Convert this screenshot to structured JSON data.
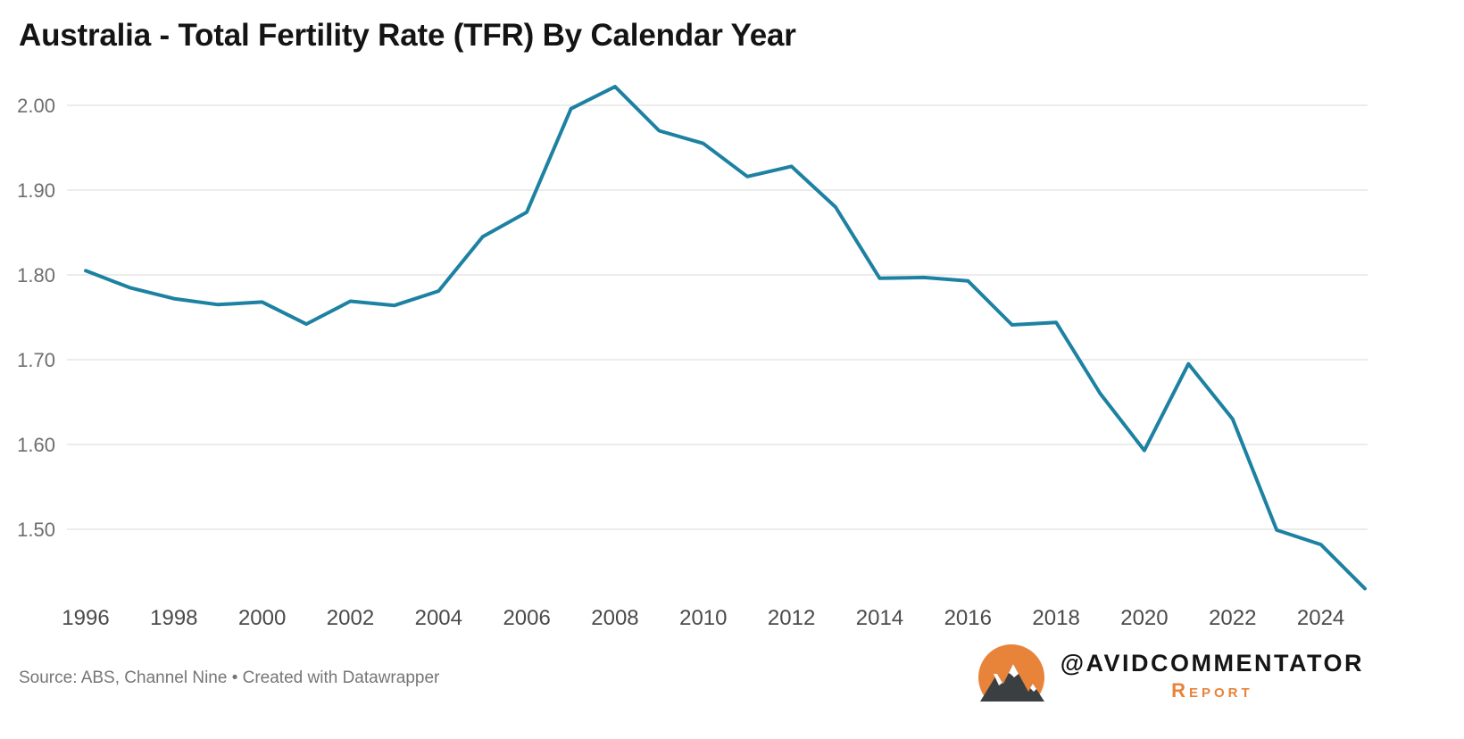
{
  "title": "Australia - Total Fertility Rate (TFR) By Calendar Year",
  "footer": {
    "source": "Source: ABS, Channel Nine • Created with Datawrapper",
    "brand_handle": "@AVIDCOMMENTATOR",
    "brand_sub": "Report"
  },
  "icons": {
    "brand_logo": "mountain-badge-icon"
  },
  "colors": {
    "line": "#1d81a2",
    "grid": "#e6e6e6",
    "y_axis_text": "#6e6e6e",
    "x_axis_text": "#4a4a4a",
    "muted_text": "#767676",
    "brand_orange": "#e8833a",
    "logo_mountain_dark": "#3a3f42",
    "logo_mountain_snow": "#ffffff"
  },
  "chart_data": {
    "type": "line",
    "title": "Australia - Total Fertility Rate (TFR) By Calendar Year",
    "xlabel": "",
    "ylabel": "",
    "grid": "horizontal",
    "legend": "none",
    "xlim": [
      1996,
      2025
    ],
    "ylim": [
      1.42,
      2.05
    ],
    "y_ticks": [
      1.5,
      1.6,
      1.7,
      1.8,
      1.9,
      2.0
    ],
    "x_tick_labels": [
      "1996",
      "1998",
      "2000",
      "2002",
      "2004",
      "2006",
      "2008",
      "2010",
      "2012",
      "2014",
      "2016",
      "2018",
      "2020",
      "2022",
      "2024"
    ],
    "x": [
      1996,
      1997,
      1998,
      1999,
      2000,
      2001,
      2002,
      2003,
      2004,
      2005,
      2006,
      2007,
      2008,
      2009,
      2010,
      2011,
      2012,
      2013,
      2014,
      2015,
      2016,
      2017,
      2018,
      2019,
      2020,
      2021,
      2022,
      2023,
      2024,
      2025
    ],
    "values": [
      1.805,
      1.785,
      1.772,
      1.765,
      1.768,
      1.742,
      1.769,
      1.764,
      1.781,
      1.845,
      1.874,
      1.996,
      2.022,
      1.97,
      1.955,
      1.916,
      1.928,
      1.88,
      1.796,
      1.797,
      1.793,
      1.741,
      1.744,
      1.66,
      1.593,
      1.695,
      1.63,
      1.499,
      1.482,
      1.43
    ]
  }
}
